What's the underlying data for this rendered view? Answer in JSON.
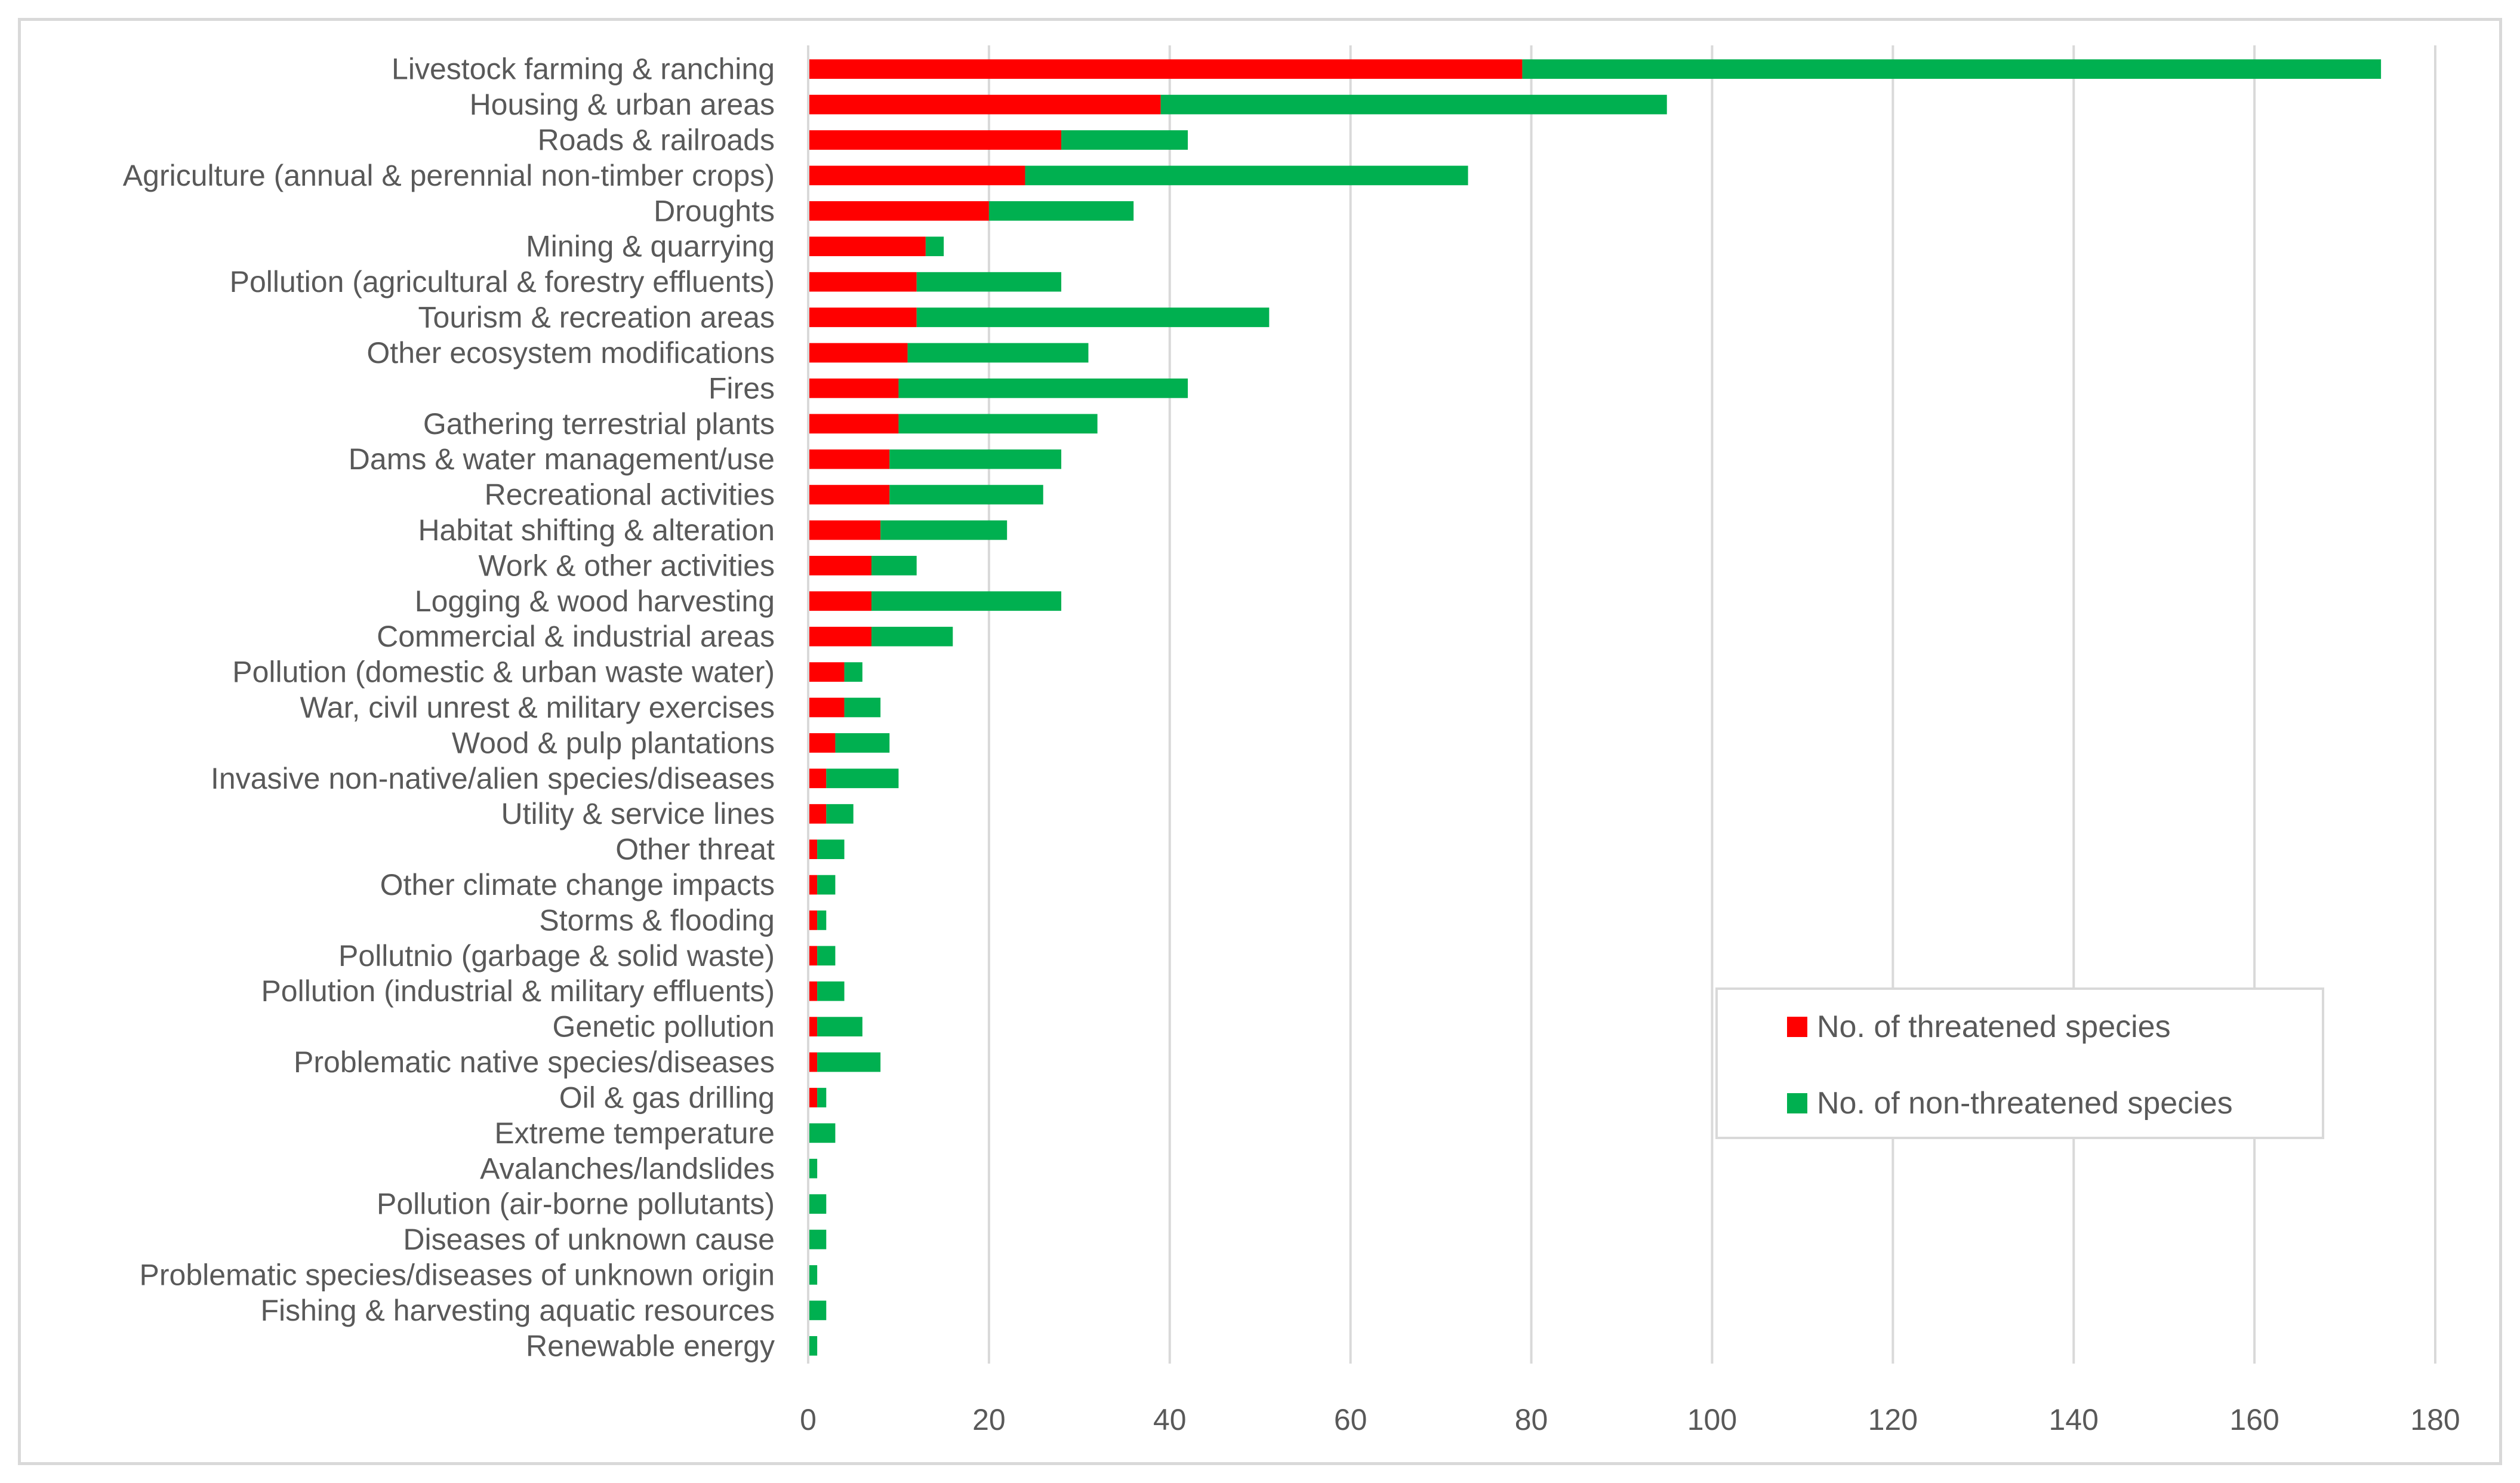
{
  "chart_data": {
    "type": "bar",
    "orientation": "horizontal",
    "stacked": true,
    "title": "",
    "xlabel": "",
    "ylabel": "",
    "xlim": [
      0,
      180
    ],
    "xticks": [
      0,
      20,
      40,
      60,
      80,
      100,
      120,
      140,
      160,
      180
    ],
    "grid": "vertical",
    "legend_position": "lower-right",
    "categories": [
      "Livestock farming & ranching",
      "Housing & urban areas",
      "Roads & railroads",
      "Agriculture (annual & perennial non-timber crops)",
      "Droughts",
      "Mining & quarrying",
      "Pollution (agricultural & forestry effluents)",
      "Tourism & recreation areas",
      "Other ecosystem modifications",
      "Fires",
      "Gathering terrestrial plants",
      "Dams & water management/use",
      "Recreational activities",
      "Habitat shifting & alteration",
      "Work & other activities",
      "Logging & wood harvesting",
      "Commercial & industrial areas",
      "Pollution (domestic & urban waste water)",
      "War, civil unrest & military exercises",
      "Wood & pulp plantations",
      "Invasive non-native/alien species/diseases",
      "Utility & service lines",
      "Other threat",
      "Other climate change impacts",
      "Storms & flooding",
      "Pollutnio (garbage & solid waste)",
      "Pollution (industrial & military effluents)",
      "Genetic pollution",
      "Problematic native species/diseases",
      "Oil & gas drilling",
      "Extreme temperature",
      "Avalanches/landslides",
      "Pollution (air-borne pollutants)",
      "Diseases of unknown cause",
      "Problematic species/diseases of unknown origin",
      "Fishing & harvesting aquatic resources",
      "Renewable energy"
    ],
    "series": [
      {
        "name": "No. of threatened species",
        "color": "#ff0000",
        "values": [
          79,
          39,
          28,
          24,
          20,
          13,
          12,
          12,
          11,
          10,
          10,
          9,
          9,
          8,
          7,
          7,
          7,
          4,
          4,
          3,
          2,
          2,
          1,
          1,
          1,
          1,
          1,
          1,
          1,
          1,
          0,
          0,
          0,
          0,
          0,
          0,
          0
        ]
      },
      {
        "name": "No. of non-threatened species",
        "color": "#00b050",
        "values": [
          95,
          56,
          14,
          49,
          16,
          2,
          16,
          39,
          20,
          32,
          22,
          19,
          17,
          14,
          5,
          21,
          9,
          2,
          4,
          6,
          8,
          3,
          3,
          2,
          1,
          2,
          3,
          5,
          7,
          1,
          3,
          1,
          2,
          2,
          1,
          2,
          1
        ]
      }
    ]
  }
}
